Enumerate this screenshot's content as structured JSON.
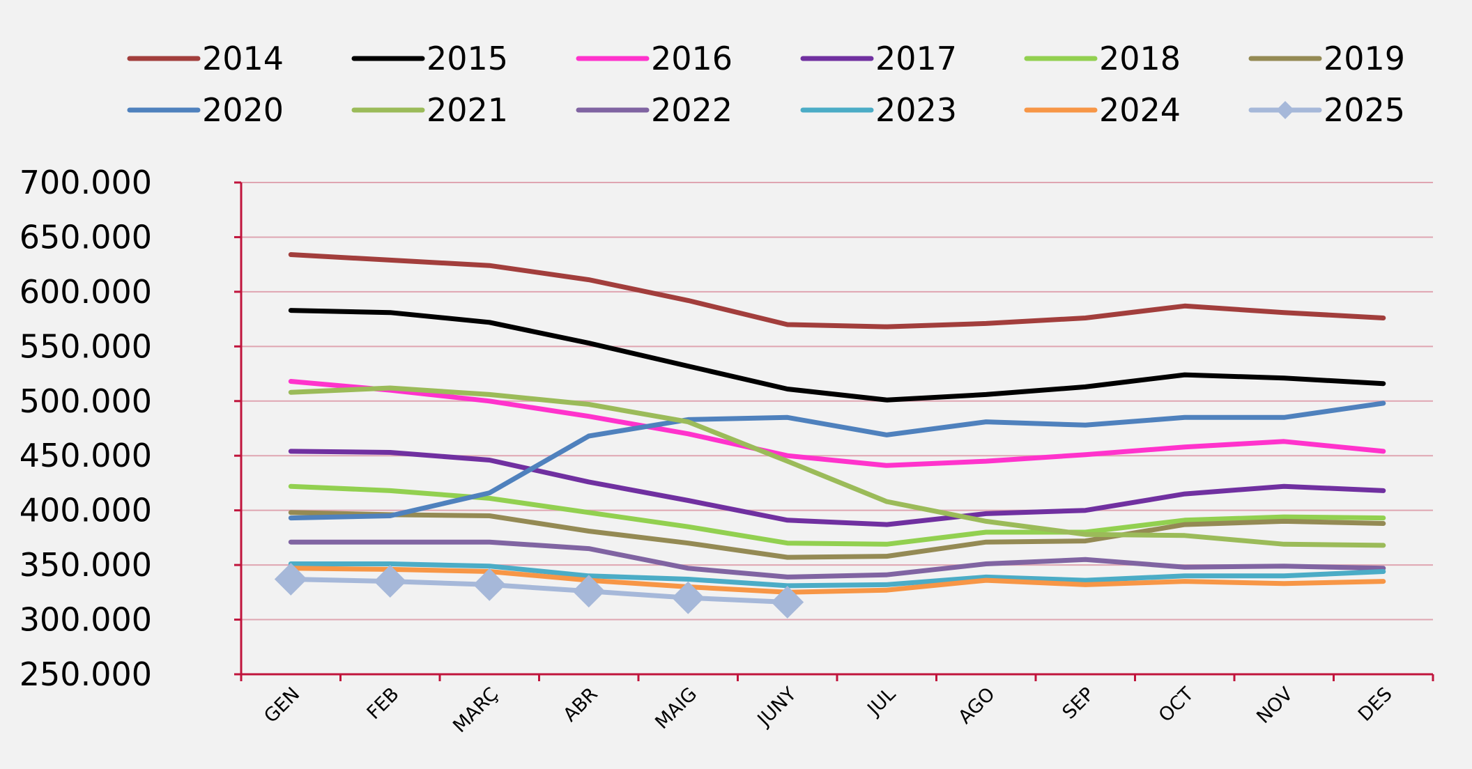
{
  "chart_data": {
    "type": "line",
    "title": "",
    "xlabel": "",
    "ylabel": "",
    "ylim": [
      250000,
      700000
    ],
    "yticks": [
      250000,
      300000,
      350000,
      400000,
      450000,
      500000,
      550000,
      600000,
      650000,
      700000
    ],
    "ytick_labels": [
      "250.000",
      "300.000",
      "350.000",
      "400.000",
      "450.000",
      "500.000",
      "550.000",
      "600.000",
      "650.000",
      "700.000"
    ],
    "categories": [
      "GEN",
      "FEB",
      "MARÇ",
      "ABR",
      "MAIG",
      "JUNY",
      "JUL",
      "AGO",
      "SEP",
      "OCT",
      "NOV",
      "DES"
    ],
    "grid": "horizontal",
    "legend_position": "top",
    "axis_color": "#c0143c",
    "grid_color": "#dfa5b1",
    "series": [
      {
        "name": "2014",
        "color": "#a23e3c",
        "values": [
          634000,
          629000,
          624000,
          611000,
          592000,
          570000,
          568000,
          571000,
          576000,
          587000,
          581000,
          576000
        ]
      },
      {
        "name": "2015",
        "color": "#000000",
        "values": [
          583000,
          581000,
          572000,
          553000,
          532000,
          511000,
          501000,
          506000,
          513000,
          524000,
          521000,
          516000
        ]
      },
      {
        "name": "2016",
        "color": "#ff33cc",
        "values": [
          518000,
          510000,
          500000,
          486000,
          470000,
          450000,
          441000,
          445000,
          451000,
          458000,
          463000,
          454000
        ]
      },
      {
        "name": "2017",
        "color": "#7030a0",
        "values": [
          454000,
          453000,
          446000,
          426000,
          409000,
          391000,
          387000,
          397000,
          400000,
          415000,
          422000,
          418000
        ]
      },
      {
        "name": "2018",
        "color": "#92d050",
        "values": [
          422000,
          418000,
          411000,
          398000,
          385000,
          370000,
          369000,
          380000,
          380000,
          391000,
          394000,
          393000
        ]
      },
      {
        "name": "2019",
        "color": "#948a54",
        "values": [
          398000,
          396000,
          395000,
          381000,
          370000,
          357000,
          358000,
          371000,
          372000,
          387000,
          390000,
          388000
        ]
      },
      {
        "name": "2020",
        "color": "#4f81bd",
        "values": [
          393000,
          395000,
          416000,
          468000,
          483000,
          485000,
          469000,
          481000,
          478000,
          485000,
          485000,
          498000
        ]
      },
      {
        "name": "2021",
        "color": "#9bbb59",
        "values": [
          508000,
          512000,
          506000,
          497000,
          481000,
          445000,
          408000,
          390000,
          378000,
          377000,
          369000,
          368000
        ]
      },
      {
        "name": "2022",
        "color": "#8064a2",
        "values": [
          371000,
          371000,
          371000,
          365000,
          347000,
          339000,
          341000,
          351000,
          355000,
          348000,
          349000,
          347000
        ]
      },
      {
        "name": "2023",
        "color": "#4bacc6",
        "values": [
          351000,
          351000,
          349000,
          340000,
          337000,
          331000,
          332000,
          339000,
          336000,
          340000,
          340000,
          344000
        ]
      },
      {
        "name": "2024",
        "color": "#f79646",
        "values": [
          347000,
          346000,
          344000,
          336000,
          330000,
          325000,
          327000,
          336000,
          332000,
          335000,
          333000,
          335000
        ]
      },
      {
        "name": "2025",
        "color": "#a6b8d9",
        "marker": "diamond",
        "values": [
          337000,
          335000,
          332000,
          326000,
          320000,
          316000,
          null,
          null,
          null,
          null,
          null,
          null
        ]
      }
    ]
  }
}
